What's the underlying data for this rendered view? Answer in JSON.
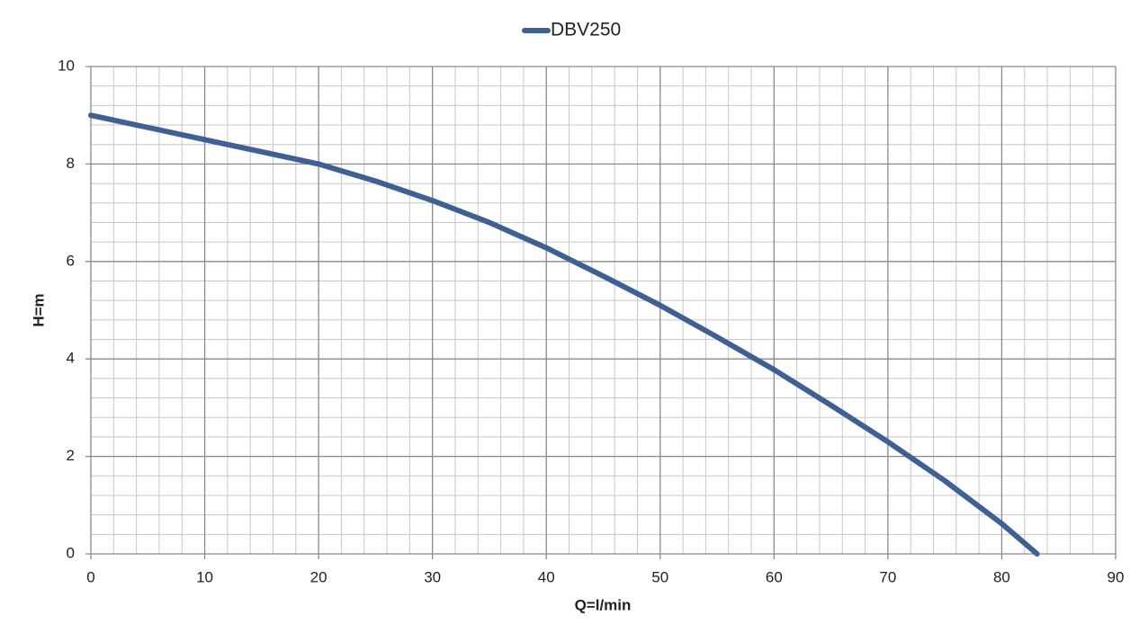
{
  "chart_data": {
    "type": "line",
    "x_label": "Q=l/min",
    "y_label": "H=m",
    "x": [
      0,
      5,
      10,
      15,
      20,
      25,
      30,
      35,
      40,
      45,
      50,
      55,
      60,
      65,
      70,
      75,
      80,
      83.1
    ],
    "series": [
      {
        "name": "DBV250",
        "color": "#3f6092",
        "values": [
          9.0,
          8.75,
          8.5,
          8.25,
          8.0,
          7.65,
          7.25,
          6.8,
          6.28,
          5.7,
          5.1,
          4.45,
          3.78,
          3.05,
          2.3,
          1.5,
          0.62,
          0
        ]
      }
    ],
    "xlim": [
      0,
      90
    ],
    "xticks": [
      0,
      10,
      20,
      30,
      40,
      50,
      60,
      70,
      80,
      90
    ],
    "ylim": [
      0,
      10
    ],
    "yticks": [
      0,
      2,
      4,
      6,
      8,
      10
    ],
    "grid": true,
    "minor_grid": true,
    "legend": "top"
  }
}
